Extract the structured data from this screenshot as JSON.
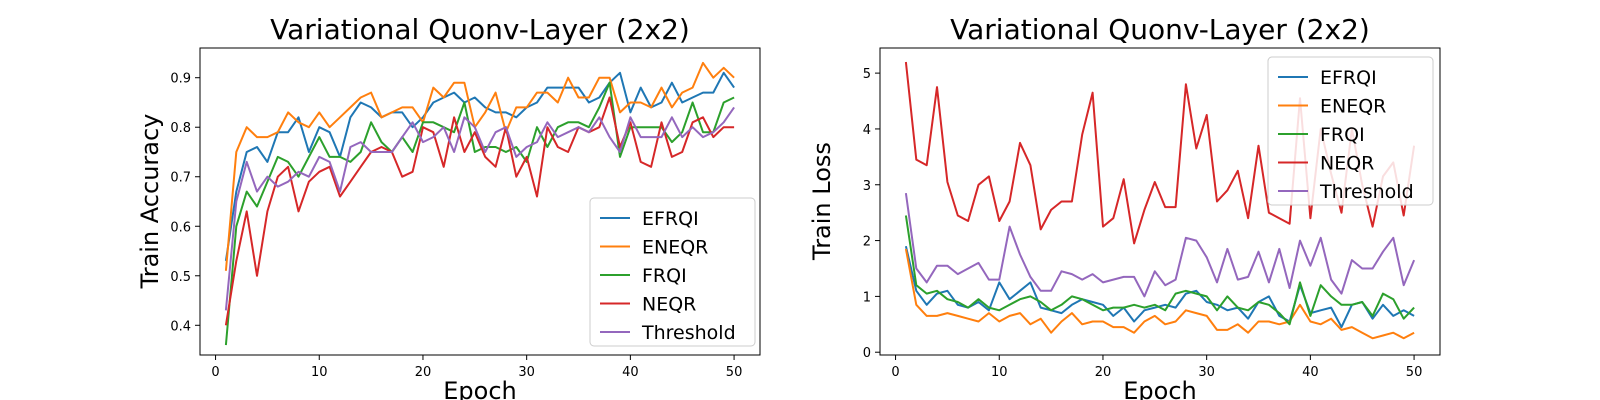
{
  "chart_data": [
    {
      "type": "line",
      "title": "Variational Quonv-Layer (2x2)",
      "xlabel": "Epoch",
      "ylabel": "Train Accuracy",
      "xlim": [
        -1.5,
        52.5
      ],
      "ylim": [
        0.34,
        0.96
      ],
      "xticks": [
        0,
        10,
        20,
        30,
        40,
        50
      ],
      "yticks": [
        0.4,
        0.5,
        0.6,
        0.7,
        0.8,
        0.9
      ],
      "ytick_labels": [
        "0.4",
        "0.5",
        "0.6",
        "0.7",
        "0.8",
        "0.9"
      ],
      "grid": false,
      "legend": "lower-right",
      "x": [
        1,
        2,
        3,
        4,
        5,
        6,
        7,
        8,
        9,
        10,
        11,
        12,
        13,
        14,
        15,
        16,
        17,
        18,
        19,
        20,
        21,
        22,
        23,
        24,
        25,
        26,
        27,
        28,
        29,
        30,
        31,
        32,
        33,
        34,
        35,
        36,
        37,
        38,
        39,
        40,
        41,
        42,
        43,
        44,
        45,
        46,
        47,
        48,
        49,
        50
      ],
      "series": [
        {
          "name": "EFRQI",
          "color": "#1f77b4",
          "values": [
            0.53,
            0.67,
            0.75,
            0.76,
            0.73,
            0.79,
            0.79,
            0.82,
            0.75,
            0.8,
            0.79,
            0.74,
            0.82,
            0.85,
            0.84,
            0.82,
            0.83,
            0.83,
            0.8,
            0.82,
            0.85,
            0.86,
            0.87,
            0.85,
            0.86,
            0.84,
            0.83,
            0.83,
            0.82,
            0.84,
            0.85,
            0.88,
            0.88,
            0.88,
            0.88,
            0.85,
            0.86,
            0.89,
            0.91,
            0.83,
            0.88,
            0.84,
            0.85,
            0.89,
            0.85,
            0.86,
            0.87,
            0.87,
            0.91,
            0.88
          ]
        },
        {
          "name": "ENEQR",
          "color": "#ff7f0e",
          "values": [
            0.51,
            0.75,
            0.8,
            0.78,
            0.78,
            0.79,
            0.83,
            0.81,
            0.8,
            0.83,
            0.8,
            0.82,
            0.84,
            0.86,
            0.87,
            0.82,
            0.83,
            0.84,
            0.84,
            0.81,
            0.88,
            0.86,
            0.89,
            0.89,
            0.8,
            0.83,
            0.87,
            0.79,
            0.84,
            0.84,
            0.87,
            0.87,
            0.85,
            0.9,
            0.86,
            0.86,
            0.9,
            0.9,
            0.83,
            0.85,
            0.85,
            0.84,
            0.88,
            0.84,
            0.87,
            0.88,
            0.93,
            0.9,
            0.92,
            0.9
          ]
        },
        {
          "name": "FRQI",
          "color": "#2ca02c",
          "values": [
            0.36,
            0.6,
            0.67,
            0.64,
            0.69,
            0.74,
            0.73,
            0.7,
            0.74,
            0.78,
            0.74,
            0.74,
            0.73,
            0.75,
            0.81,
            0.77,
            0.75,
            0.78,
            0.75,
            0.81,
            0.81,
            0.8,
            0.79,
            0.85,
            0.75,
            0.76,
            0.76,
            0.75,
            0.76,
            0.73,
            0.8,
            0.76,
            0.8,
            0.81,
            0.81,
            0.8,
            0.84,
            0.89,
            0.74,
            0.8,
            0.8,
            0.8,
            0.8,
            0.77,
            0.79,
            0.85,
            0.79,
            0.79,
            0.85,
            0.86
          ]
        },
        {
          "name": "NEQR",
          "color": "#d62728",
          "values": [
            0.4,
            0.53,
            0.63,
            0.5,
            0.63,
            0.7,
            0.72,
            0.63,
            0.69,
            0.71,
            0.72,
            0.66,
            0.69,
            0.72,
            0.75,
            0.76,
            0.75,
            0.7,
            0.71,
            0.8,
            0.79,
            0.72,
            0.82,
            0.75,
            0.79,
            0.74,
            0.72,
            0.8,
            0.7,
            0.74,
            0.66,
            0.8,
            0.76,
            0.75,
            0.8,
            0.79,
            0.8,
            0.86,
            0.76,
            0.81,
            0.73,
            0.72,
            0.81,
            0.74,
            0.75,
            0.81,
            0.82,
            0.78,
            0.8,
            0.8
          ]
        },
        {
          "name": "Threshold",
          "color": "#9467bd",
          "values": [
            0.43,
            0.65,
            0.73,
            0.67,
            0.7,
            0.68,
            0.69,
            0.71,
            0.7,
            0.74,
            0.73,
            0.67,
            0.76,
            0.77,
            0.75,
            0.75,
            0.75,
            0.78,
            0.81,
            0.77,
            0.78,
            0.8,
            0.75,
            0.82,
            0.8,
            0.75,
            0.79,
            0.8,
            0.74,
            0.76,
            0.77,
            0.81,
            0.78,
            0.79,
            0.8,
            0.79,
            0.82,
            0.78,
            0.75,
            0.82,
            0.78,
            0.78,
            0.78,
            0.82,
            0.78,
            0.8,
            0.78,
            0.79,
            0.81,
            0.84
          ]
        }
      ]
    },
    {
      "type": "line",
      "title": "Variational Quonv-Layer (2x2)",
      "xlabel": "Epoch",
      "ylabel": "Train Loss",
      "xlim": [
        -1.5,
        52.5
      ],
      "ylim": [
        -0.05,
        5.45
      ],
      "xticks": [
        0,
        10,
        20,
        30,
        40,
        50
      ],
      "yticks": [
        0,
        1,
        2,
        3,
        4,
        5
      ],
      "ytick_labels": [
        "0",
        "1",
        "2",
        "3",
        "4",
        "5"
      ],
      "grid": false,
      "legend": "upper-right",
      "x": [
        1,
        2,
        3,
        4,
        5,
        6,
        7,
        8,
        9,
        10,
        11,
        12,
        13,
        14,
        15,
        16,
        17,
        18,
        19,
        20,
        21,
        22,
        23,
        24,
        25,
        26,
        27,
        28,
        29,
        30,
        31,
        32,
        33,
        34,
        35,
        36,
        37,
        38,
        39,
        40,
        41,
        42,
        43,
        44,
        45,
        46,
        47,
        48,
        49,
        50
      ],
      "series": [
        {
          "name": "EFRQI",
          "color": "#1f77b4",
          "values": [
            1.9,
            1.1,
            0.85,
            1.05,
            1.1,
            0.85,
            0.8,
            0.9,
            0.75,
            1.25,
            0.95,
            1.1,
            1.25,
            0.8,
            0.75,
            0.7,
            0.85,
            0.95,
            0.9,
            0.85,
            0.65,
            0.8,
            0.55,
            0.75,
            0.8,
            0.85,
            0.8,
            1.05,
            1.1,
            0.9,
            0.85,
            0.75,
            0.8,
            0.6,
            0.9,
            1.0,
            0.65,
            0.55,
            1.2,
            0.7,
            0.75,
            0.8,
            0.45,
            0.85,
            0.9,
            0.6,
            0.85,
            0.65,
            0.75,
            0.65
          ]
        },
        {
          "name": "ENEQR",
          "color": "#ff7f0e",
          "values": [
            1.85,
            0.85,
            0.65,
            0.65,
            0.7,
            0.65,
            0.6,
            0.55,
            0.7,
            0.55,
            0.65,
            0.7,
            0.5,
            0.6,
            0.35,
            0.55,
            0.7,
            0.5,
            0.55,
            0.55,
            0.45,
            0.45,
            0.35,
            0.55,
            0.65,
            0.5,
            0.55,
            0.75,
            0.7,
            0.65,
            0.4,
            0.4,
            0.5,
            0.35,
            0.55,
            0.55,
            0.5,
            0.55,
            0.85,
            0.55,
            0.5,
            0.6,
            0.4,
            0.45,
            0.35,
            0.25,
            0.3,
            0.35,
            0.25,
            0.35
          ]
        },
        {
          "name": "FRQI",
          "color": "#2ca02c",
          "values": [
            2.45,
            1.2,
            1.05,
            1.1,
            0.95,
            0.9,
            0.8,
            0.95,
            0.8,
            0.75,
            0.85,
            0.95,
            1.0,
            0.9,
            0.75,
            0.85,
            1.0,
            0.95,
            0.85,
            0.75,
            0.8,
            0.8,
            0.85,
            0.8,
            0.85,
            0.75,
            1.05,
            1.1,
            1.05,
            1.0,
            0.75,
            1.0,
            0.8,
            0.75,
            0.9,
            0.85,
            0.7,
            0.5,
            1.25,
            0.65,
            1.2,
            1.0,
            0.85,
            0.85,
            0.9,
            0.65,
            1.05,
            0.95,
            0.6,
            0.8
          ]
        },
        {
          "name": "NEQR",
          "color": "#d62728",
          "values": [
            5.2,
            3.45,
            3.35,
            4.75,
            3.05,
            2.45,
            2.35,
            3.0,
            3.15,
            2.35,
            2.7,
            3.75,
            3.35,
            2.2,
            2.55,
            2.7,
            2.7,
            3.9,
            4.65,
            2.25,
            2.4,
            3.1,
            1.95,
            2.55,
            3.05,
            2.6,
            2.6,
            4.8,
            3.65,
            4.25,
            2.7,
            2.9,
            3.25,
            2.4,
            3.7,
            2.5,
            2.4,
            2.3,
            4.55,
            2.4,
            4.0,
            3.2,
            2.5,
            4.0,
            3.0,
            2.25,
            3.15,
            3.4,
            2.45,
            3.7
          ]
        },
        {
          "name": "Threshold",
          "color": "#9467bd",
          "values": [
            2.85,
            1.5,
            1.25,
            1.55,
            1.55,
            1.4,
            1.5,
            1.6,
            1.3,
            1.3,
            2.25,
            1.75,
            1.35,
            1.1,
            1.1,
            1.45,
            1.4,
            1.3,
            1.4,
            1.25,
            1.3,
            1.35,
            1.35,
            1.0,
            1.45,
            1.2,
            1.3,
            2.05,
            2.0,
            1.7,
            1.25,
            1.85,
            1.3,
            1.35,
            1.8,
            1.25,
            1.85,
            1.15,
            2.0,
            1.55,
            2.05,
            1.3,
            1.05,
            1.65,
            1.5,
            1.5,
            1.8,
            2.05,
            1.2,
            1.65
          ]
        }
      ]
    }
  ]
}
